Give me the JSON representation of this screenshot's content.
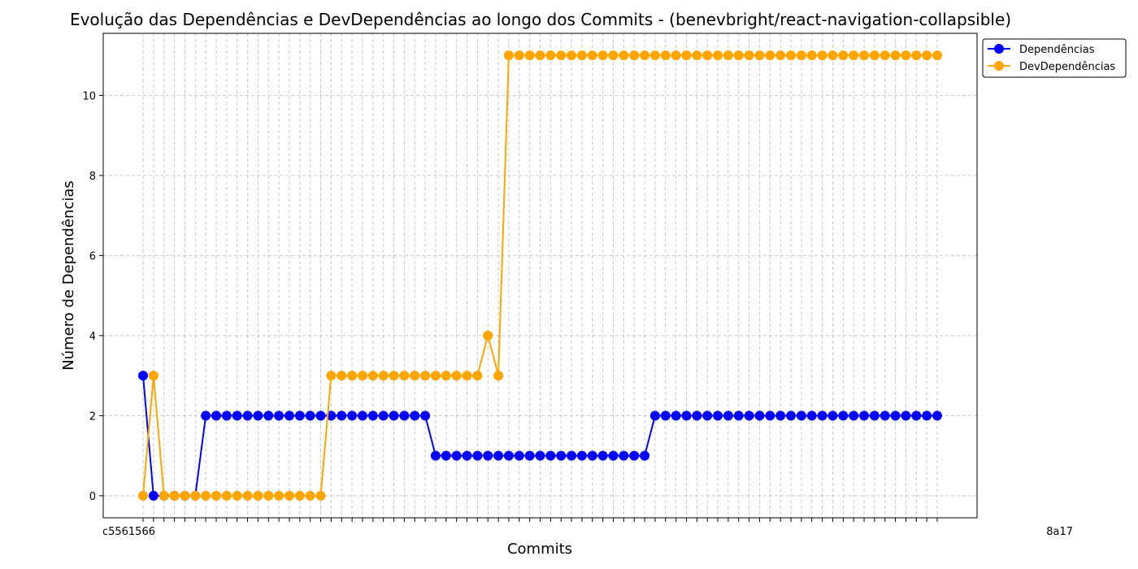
{
  "chart_data": {
    "type": "line",
    "title": "Evolução das Dependências e DevDependências ao longo dos Commits - (benevbright/react-navigation-collapsible)",
    "xlabel": "Commits",
    "ylabel": "Número de Dependências",
    "ylim": [
      -0.55,
      11.55
    ],
    "yticks": [
      0,
      2,
      4,
      6,
      8,
      10
    ],
    "grid": true,
    "legend_position": "top-right",
    "x_tick_labels_visible": {
      "first": "c5561566",
      "last": "8a17"
    },
    "series": [
      {
        "name": "Dependências",
        "color": "#0000ff",
        "values": [
          3,
          0,
          0,
          0,
          0,
          0,
          2,
          2,
          2,
          2,
          2,
          2,
          2,
          2,
          2,
          2,
          2,
          2,
          2,
          2,
          2,
          2,
          2,
          2,
          2,
          2,
          2,
          2,
          1,
          1,
          1,
          1,
          1,
          1,
          1,
          1,
          1,
          1,
          1,
          1,
          1,
          1,
          1,
          1,
          1,
          1,
          1,
          1,
          1,
          2,
          2,
          2,
          2,
          2,
          2,
          2,
          2,
          2,
          2,
          2,
          2,
          2,
          2,
          2,
          2,
          2,
          2,
          2,
          2,
          2,
          2,
          2,
          2,
          2,
          2,
          2,
          2
        ]
      },
      {
        "name": "DevDependências",
        "color": "#ffa500",
        "values": [
          0,
          3,
          0,
          0,
          0,
          0,
          0,
          0,
          0,
          0,
          0,
          0,
          0,
          0,
          0,
          0,
          0,
          0,
          3,
          3,
          3,
          3,
          3,
          3,
          3,
          3,
          3,
          3,
          3,
          3,
          3,
          3,
          3,
          4,
          3,
          11,
          11,
          11,
          11,
          11,
          11,
          11,
          11,
          11,
          11,
          11,
          11,
          11,
          11,
          11,
          11,
          11,
          11,
          11,
          11,
          11,
          11,
          11,
          11,
          11,
          11,
          11,
          11,
          11,
          11,
          11,
          11,
          11,
          11,
          11,
          11,
          11,
          11,
          11,
          11,
          11,
          11
        ]
      }
    ]
  }
}
